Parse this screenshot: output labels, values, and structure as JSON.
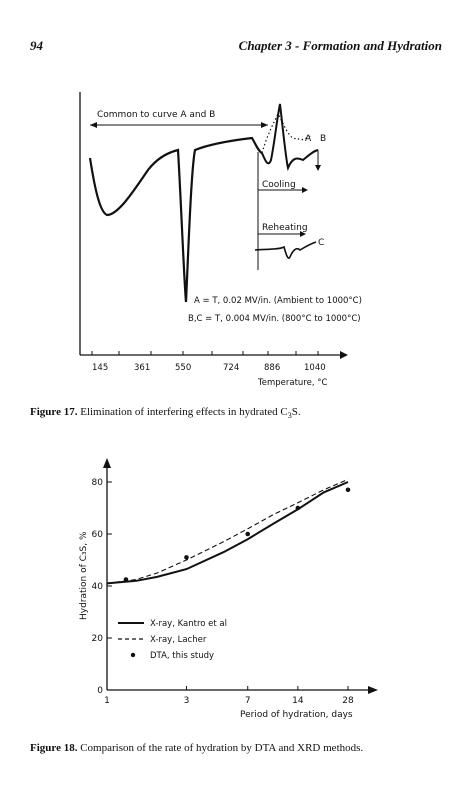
{
  "header": {
    "page_number": "94",
    "chapter_title": "Chapter 3 - Formation and Hydration"
  },
  "figure17": {
    "caption_label": "Figure 17.",
    "caption_text": "Elimination of interfering effects in hydrated C",
    "caption_sub": "3",
    "caption_end": "S.",
    "annotation_common": "Common to curve A and B",
    "label_a": "A",
    "label_b": "B",
    "label_c": "C",
    "label_cooling": "Cooling",
    "label_reheating": "Reheating",
    "legend_line1": "A = T, 0.02 MV/in. (Ambient to 1000°C)",
    "legend_line2": "B,C = T, 0.004 MV/in. (800°C to 1000°C)",
    "xlabel": "Temperature, °C",
    "xticks": [
      "145",
      "361",
      "550",
      "724",
      "886",
      "1040"
    ]
  },
  "figure18": {
    "caption_label": "Figure 18.",
    "caption_text": "Comparison of the rate of hydration by DTA and XRD methods.",
    "ylabel": "Hydration of C₃S, %",
    "xlabel": "Period of hydration, days",
    "legend": [
      {
        "label": "X-ray, Kantro et al",
        "style": "solid"
      },
      {
        "label": "X-ray, Lacher",
        "style": "dashed"
      },
      {
        "label": "DTA, this study",
        "style": "dot"
      }
    ]
  },
  "chart_data": {
    "type": "line",
    "x_scale": "log",
    "xlabel": "Period of hydration, days",
    "ylabel": "Hydration of C₃S, %",
    "x_ticks": [
      1,
      3,
      7,
      14,
      28
    ],
    "y_ticks": [
      0,
      20,
      40,
      60,
      80
    ],
    "ylim": [
      0,
      90
    ],
    "series": [
      {
        "name": "X-ray, Kantro et al",
        "style": "solid",
        "x": [
          1,
          1.5,
          2,
          3,
          5,
          7,
          10,
          14,
          20,
          28
        ],
        "y": [
          41,
          42,
          43.5,
          46.5,
          53,
          58,
          64,
          69.5,
          76,
          80
        ]
      },
      {
        "name": "X-ray, Lacher",
        "style": "dashed",
        "x": [
          1,
          1.5,
          2,
          3,
          5,
          7,
          10,
          14,
          20,
          28
        ],
        "y": [
          41,
          42.5,
          45,
          50,
          57,
          62,
          67.5,
          72,
          77,
          81
        ]
      },
      {
        "name": "DTA, this study",
        "style": "dot",
        "x": [
          1.3,
          3,
          7,
          14,
          28
        ],
        "y": [
          42.5,
          51,
          60,
          70,
          77
        ]
      }
    ]
  }
}
